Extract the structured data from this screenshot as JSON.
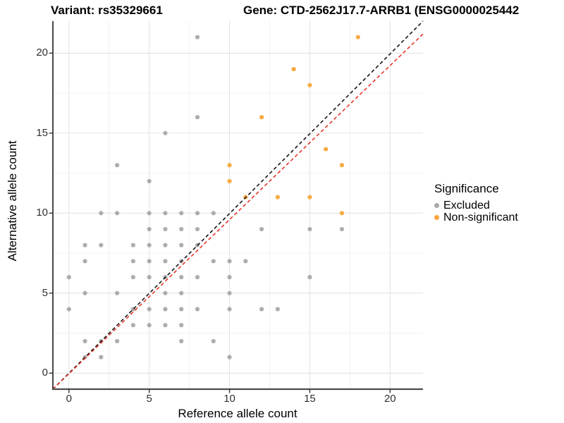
{
  "header": {
    "variant_title": "Variant: rs35329661",
    "gene_title": "Gene: CTD-2562J17.7-ARRB1 (ENSG0000025442"
  },
  "legend": {
    "title": "Significance",
    "items": [
      {
        "label": "Excluded",
        "color": "#A9A9A9"
      },
      {
        "label": "Non-significant",
        "color": "#FAA43A"
      }
    ]
  },
  "chart_data": {
    "type": "scatter",
    "xlabel": "Reference allele count",
    "ylabel": "Alternative allele count",
    "xlim": [
      -1,
      22.05
    ],
    "ylim": [
      -1,
      22.0
    ],
    "x_ticks": [
      0,
      5,
      10,
      15,
      20
    ],
    "y_ticks": [
      0,
      5,
      10,
      15,
      20
    ],
    "x_minor_ticks": [
      2.5,
      7.5,
      12.5,
      17.5
    ],
    "y_minor_ticks": [
      2.5,
      7.5,
      12.5,
      17.5
    ],
    "grid": true,
    "legend_position": "right",
    "colors": {
      "major_grid": "#e4e4e4",
      "minor_grid": "#f0f0f0",
      "y_axis_line": "#1a1a1a",
      "x_axis_line": "#4d4d4d",
      "tick_mark": "#333333"
    },
    "series": [
      {
        "name": "Excluded",
        "color": "#A9A9A9",
        "points": [
          [
            0,
            4
          ],
          [
            0,
            6
          ],
          [
            1,
            1
          ],
          [
            1,
            2
          ],
          [
            1,
            5
          ],
          [
            1,
            7
          ],
          [
            1,
            8
          ],
          [
            2,
            1
          ],
          [
            2,
            2
          ],
          [
            2,
            8
          ],
          [
            2,
            10
          ],
          [
            3,
            2
          ],
          [
            3,
            5
          ],
          [
            3,
            10
          ],
          [
            3,
            13
          ],
          [
            4,
            3
          ],
          [
            4,
            4
          ],
          [
            4,
            6
          ],
          [
            4,
            7
          ],
          [
            4,
            8
          ],
          [
            5,
            3
          ],
          [
            5,
            4
          ],
          [
            5,
            6
          ],
          [
            5,
            7
          ],
          [
            5,
            8
          ],
          [
            5,
            9
          ],
          [
            5,
            10
          ],
          [
            5,
            12
          ],
          [
            6,
            3
          ],
          [
            6,
            4
          ],
          [
            6,
            5
          ],
          [
            6,
            6
          ],
          [
            6,
            7
          ],
          [
            6,
            8
          ],
          [
            6,
            9
          ],
          [
            6,
            10
          ],
          [
            6,
            15
          ],
          [
            7,
            2
          ],
          [
            7,
            3
          ],
          [
            7,
            4
          ],
          [
            7,
            5
          ],
          [
            7,
            6
          ],
          [
            7,
            7
          ],
          [
            7,
            8
          ],
          [
            7,
            9
          ],
          [
            7,
            10
          ],
          [
            8,
            4
          ],
          [
            8,
            6
          ],
          [
            8,
            8
          ],
          [
            8,
            9
          ],
          [
            8,
            10
          ],
          [
            8,
            16
          ],
          [
            8,
            21
          ],
          [
            9,
            2
          ],
          [
            9,
            7
          ],
          [
            9,
            10
          ],
          [
            10,
            1
          ],
          [
            10,
            4
          ],
          [
            10,
            5
          ],
          [
            10,
            6
          ],
          [
            10,
            7
          ],
          [
            11,
            7
          ],
          [
            12,
            4
          ],
          [
            12,
            9
          ],
          [
            13,
            4
          ],
          [
            15,
            6
          ],
          [
            15,
            9
          ],
          [
            17,
            9
          ]
        ]
      },
      {
        "name": "Non-significant",
        "color": "#FAA43A",
        "points": [
          [
            10,
            12
          ],
          [
            10,
            13
          ],
          [
            11,
            11
          ],
          [
            12,
            16
          ],
          [
            13,
            11
          ],
          [
            14,
            19
          ],
          [
            15,
            11
          ],
          [
            15,
            18
          ],
          [
            16,
            14
          ],
          [
            17,
            10
          ],
          [
            17,
            13
          ],
          [
            18,
            21
          ]
        ]
      }
    ],
    "lines": [
      {
        "name": "identity-line",
        "color": "#141414",
        "dash": "5 3.5",
        "from": [
          -1,
          -1
        ],
        "to": [
          22.05,
          22.0
        ]
      },
      {
        "name": "fit-line",
        "color": "#E8352A",
        "dash": "5 3.5",
        "from": [
          -1,
          -1
        ],
        "to": [
          22.05,
          21.2
        ]
      }
    ]
  }
}
